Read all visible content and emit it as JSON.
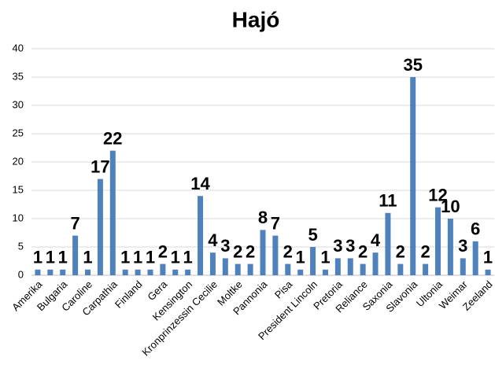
{
  "chart_data": {
    "type": "bar",
    "title": "Hajó",
    "categories": [
      "Amerika",
      null,
      "Bulgaria",
      null,
      "Caroline",
      null,
      "Carpathia",
      null,
      "Finland",
      null,
      "Gera",
      null,
      "Kensington",
      null,
      "Kronprinzessin Cecilie",
      null,
      "Moltke",
      null,
      "Pannonia",
      null,
      "Pisa",
      null,
      "President Lincoln",
      null,
      "Pretoria",
      null,
      "Reliance",
      null,
      "Saxonia",
      null,
      "Slavonia",
      null,
      "Ultonia",
      null,
      "Weimar",
      null,
      "Zeeland"
    ],
    "values": [
      1,
      1,
      1,
      7,
      1,
      17,
      22,
      1,
      1,
      1,
      2,
      1,
      1,
      14,
      4,
      3,
      2,
      2,
      8,
      7,
      2,
      1,
      5,
      1,
      3,
      3,
      2,
      4,
      11,
      2,
      35,
      2,
      12,
      10,
      3,
      6,
      1
    ],
    "color": "#4f81bd",
    "ylim": [
      0,
      40
    ],
    "yticks": [
      0,
      5,
      10,
      15,
      20,
      25,
      30,
      35,
      40
    ],
    "grid": true
  }
}
